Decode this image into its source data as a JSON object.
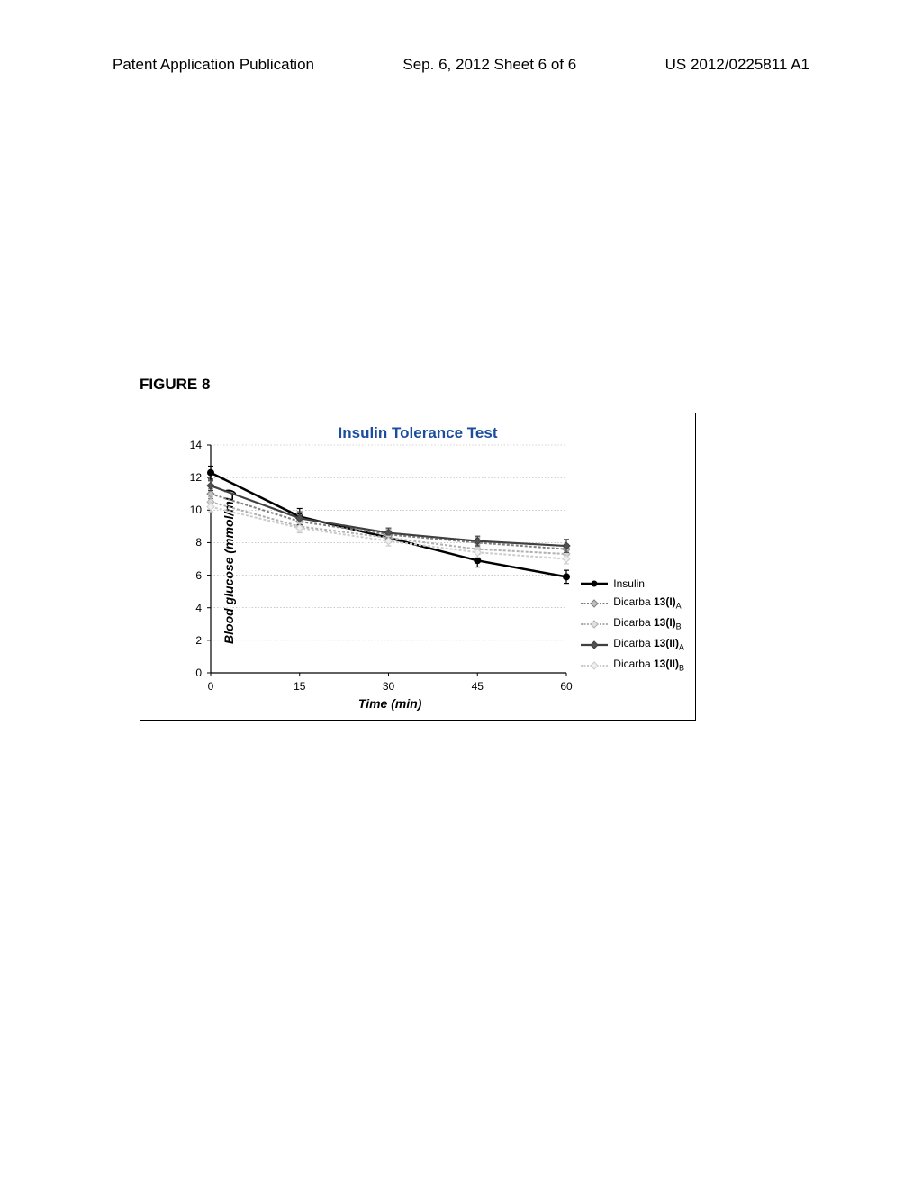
{
  "header": {
    "left": "Patent Application Publication",
    "center": "Sep. 6, 2012   Sheet 6 of 6",
    "right": "US 2012/0225811 A1"
  },
  "figure_label": "FIGURE 8",
  "chart": {
    "type": "line",
    "title": "Insulin Tolerance Test",
    "title_color": "#1a4d9e",
    "title_fontsize": 17,
    "xlabel": "Time (min)",
    "ylabel": "Blood glucose (mmol/mL)",
    "label_fontsize": 14,
    "background_color": "#ffffff",
    "border_color": "#000000",
    "grid_color": "#aaaaaa",
    "grid_style": "dotted",
    "xlim": [
      0,
      60
    ],
    "ylim": [
      0,
      14
    ],
    "xtick_step": 15,
    "ytick_step": 2,
    "xticks": [
      0,
      15,
      30,
      45,
      60
    ],
    "yticks": [
      0,
      2,
      4,
      6,
      8,
      10,
      12,
      14
    ],
    "tick_fontsize": 12,
    "series": [
      {
        "name": "Insulin",
        "label_html": "Insulin",
        "x": [
          0,
          15,
          30,
          45,
          60
        ],
        "y": [
          12.3,
          9.6,
          8.3,
          6.9,
          5.9
        ],
        "err": [
          0.4,
          0.5,
          0.3,
          0.4,
          0.4
        ],
        "color": "#000000",
        "marker": "circle",
        "marker_fill": "#000000",
        "line_width": 2.5,
        "line_style": "solid"
      },
      {
        "name": "Dicarba 13(I)A",
        "label_html": "Dicarba <b>13(I)</b><sub>A</sub>",
        "x": [
          0,
          15,
          30,
          45,
          60
        ],
        "y": [
          11.0,
          9.3,
          8.5,
          8.0,
          7.6
        ],
        "err": [
          0.3,
          0.4,
          0.3,
          0.3,
          0.3
        ],
        "color": "#808080",
        "marker": "diamond",
        "marker_fill": "#c0c0c0",
        "line_width": 2,
        "line_style": "hatched"
      },
      {
        "name": "Dicarba 13(I)B",
        "label_html": "Dicarba <b>13(I)</b><sub>B</sub>",
        "x": [
          0,
          15,
          30,
          45,
          60
        ],
        "y": [
          10.5,
          9.0,
          8.3,
          7.6,
          7.3
        ],
        "err": [
          0.3,
          0.3,
          0.3,
          0.3,
          0.3
        ],
        "color": "#b0b0b0",
        "marker": "diamond",
        "marker_fill": "#e0e0e0",
        "line_width": 2,
        "line_style": "hatched"
      },
      {
        "name": "Dicarba 13(II)A",
        "label_html": "Dicarba <b>13(II)</b><sub>A</sub>",
        "x": [
          0,
          15,
          30,
          45,
          60
        ],
        "y": [
          11.5,
          9.5,
          8.6,
          8.1,
          7.8
        ],
        "err": [
          0.3,
          0.4,
          0.3,
          0.3,
          0.4
        ],
        "color": "#404040",
        "marker": "diamond",
        "marker_fill": "#505050",
        "line_width": 2.2,
        "line_style": "solid"
      },
      {
        "name": "Dicarba 13(II)B",
        "label_html": "Dicarba <b>13(II)</b><sub>B</sub>",
        "x": [
          0,
          15,
          30,
          45,
          60
        ],
        "y": [
          10.2,
          8.9,
          8.1,
          7.4,
          7.0
        ],
        "err": [
          0.3,
          0.3,
          0.3,
          0.3,
          0.3
        ],
        "color": "#cccccc",
        "marker": "diamond",
        "marker_fill": "#f0f0f0",
        "line_width": 2,
        "line_style": "hatched"
      }
    ]
  }
}
